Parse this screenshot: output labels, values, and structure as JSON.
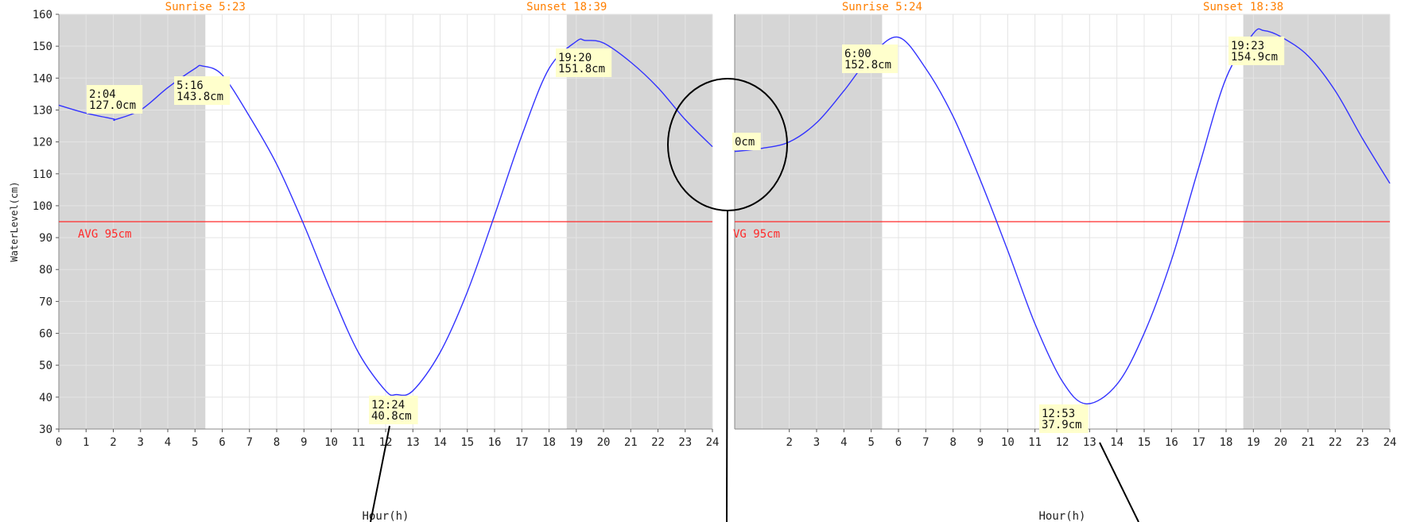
{
  "y_axis_label": "WaterLevel(cm)",
  "x_axis_label": "Hour(h)",
  "colors": {
    "curve": "#3333ff",
    "avg_line": "#ff2a2a",
    "avg_text": "#ff2a2a",
    "sun_text": "#ff7f00",
    "night_fill": "#d6d6d6",
    "grid": "#ffffff",
    "label_bg": "#ffffcc"
  },
  "chart_data": [
    {
      "type": "line",
      "day": "left",
      "xlabel": "Hour(h)",
      "ylabel": "WaterLevel(cm)",
      "xlim": [
        0,
        24
      ],
      "ylim": [
        30,
        160
      ],
      "x_ticks": [
        "0",
        "1",
        "2",
        "3",
        "4",
        "5",
        "6",
        "7",
        "8",
        "9",
        "10",
        "11",
        "12",
        "13",
        "14",
        "15",
        "16",
        "17",
        "18",
        "19",
        "20",
        "21",
        "22",
        "23",
        "24"
      ],
      "y_ticks": [
        30,
        40,
        50,
        60,
        70,
        80,
        90,
        100,
        110,
        120,
        130,
        140,
        150,
        160
      ],
      "sunrise_label": "Sunrise 5:23",
      "sunset_label": "Sunset 18:39",
      "sunrise_hour": 5.38,
      "sunset_hour": 18.65,
      "average": 95,
      "average_label": "AVG 95cm",
      "series": [
        {
          "x": [
            0,
            1,
            2,
            2.07,
            3,
            4,
            5,
            5.27,
            6,
            7,
            8,
            9,
            10,
            11,
            12,
            12.4,
            13,
            14,
            15,
            16,
            17,
            18,
            19,
            19.33,
            20,
            21,
            22,
            23,
            24
          ],
          "y": [
            131.5,
            129,
            127.2,
            127,
            130,
            137,
            143,
            143.8,
            141,
            128,
            113,
            94,
            73,
            54,
            42,
            40.8,
            42,
            54,
            73,
            97,
            122,
            143,
            151.5,
            151.8,
            151,
            145,
            137,
            127,
            118.5
          ]
        }
      ],
      "annotations": [
        {
          "time": "2:04",
          "value": "127.0cm"
        },
        {
          "time": "5:16",
          "value": "143.8cm"
        },
        {
          "time": "12:24",
          "value": "40.8cm"
        },
        {
          "time": "19:20",
          "value": "151.8cm"
        }
      ]
    },
    {
      "type": "line",
      "day": "right",
      "xlabel": "Hour(h)",
      "xlim": [
        0,
        24
      ],
      "ylim": [
        30,
        160
      ],
      "x_ticks": [
        "2",
        "3",
        "4",
        "5",
        "6",
        "7",
        "8",
        "9",
        "10",
        "11",
        "12",
        "13",
        "14",
        "15",
        "16",
        "17",
        "18",
        "19",
        "20",
        "21",
        "22",
        "23",
        "24"
      ],
      "sunrise_label": "Sunrise 5:24",
      "sunset_label": "Sunset 18:38",
      "sunrise_hour": 5.4,
      "sunset_hour": 18.63,
      "average": 95,
      "average_label": "VG 95cm",
      "series": [
        {
          "x": [
            0,
            1,
            2,
            3,
            4,
            5,
            6,
            7,
            8,
            9,
            10,
            11,
            12,
            12.88,
            14,
            15,
            16,
            17,
            18,
            19,
            19.38,
            20,
            21,
            22,
            23,
            24
          ],
          "y": [
            117,
            118,
            120,
            126,
            136,
            147,
            152.8,
            143,
            128,
            108,
            86,
            63,
            45,
            37.9,
            44,
            60,
            83,
            112,
            140,
            154,
            154.9,
            153,
            147,
            136,
            121,
            107
          ]
        }
      ],
      "annotations": [
        {
          "time": "",
          "value": "0cm"
        },
        {
          "time": "6:00",
          "value": "152.8cm"
        },
        {
          "time": "12:53",
          "value": "37.9cm"
        },
        {
          "time": "19:23",
          "value": "154.9cm"
        }
      ]
    }
  ]
}
